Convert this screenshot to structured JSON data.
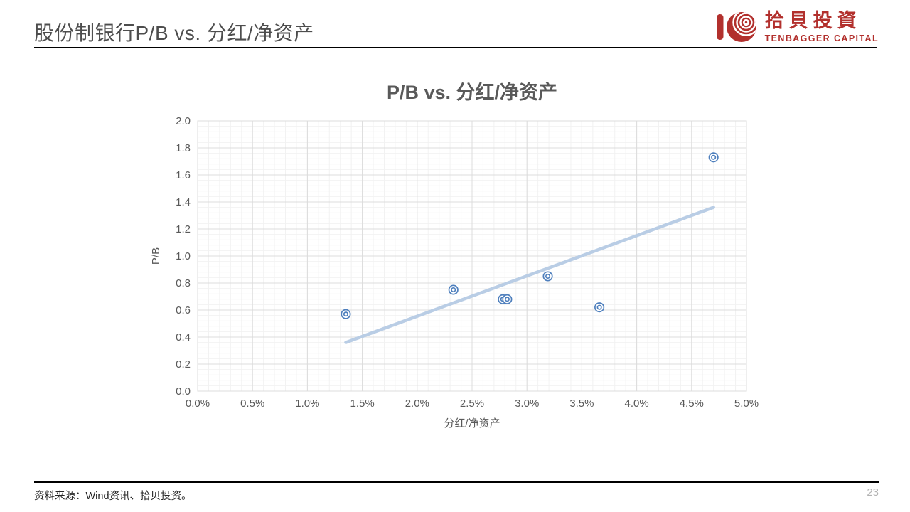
{
  "header": {
    "title": "股份制银行P/B vs. 分红/净资产"
  },
  "logo": {
    "cn": "拾貝投資",
    "en": "TENBAGGER CAPITAL",
    "color": "#b2302d"
  },
  "chart_data": {
    "type": "scatter",
    "title": "P/B vs. 分红/净资产",
    "xlabel": "分红/净资产",
    "ylabel": "P/B",
    "xlim": [
      0,
      5
    ],
    "ylim": [
      0,
      2
    ],
    "x_tick_step": 0.5,
    "y_tick_step": 0.2,
    "x_minor_step": 0.1,
    "y_minor_step": 0.04,
    "x_tick_labels": [
      "0.0%",
      "0.5%",
      "1.0%",
      "1.5%",
      "2.0%",
      "2.5%",
      "3.0%",
      "3.5%",
      "4.0%",
      "4.5%",
      "5.0%"
    ],
    "y_tick_labels": [
      "0.0",
      "0.2",
      "0.4",
      "0.6",
      "0.8",
      "1.0",
      "1.2",
      "1.4",
      "1.6",
      "1.8",
      "2.0"
    ],
    "points": [
      [
        1.35,
        0.57
      ],
      [
        2.33,
        0.75
      ],
      [
        2.78,
        0.68
      ],
      [
        2.82,
        0.68
      ],
      [
        3.19,
        0.85
      ],
      [
        3.66,
        0.62
      ],
      [
        4.7,
        1.73
      ]
    ],
    "trendline": {
      "x1": 1.35,
      "y1": 0.36,
      "x2": 4.7,
      "y2": 1.36
    },
    "grid": true,
    "legend": "none",
    "colors": {
      "marker": "#4e7fbd",
      "trend": "#b9cde5",
      "grid_major": "#dcdcdc",
      "grid_minor": "#f2f2f2",
      "axis_text": "#595959"
    }
  },
  "footer": {
    "source": "资料来源：Wind资讯、拾贝投资。",
    "page_number": "23"
  }
}
